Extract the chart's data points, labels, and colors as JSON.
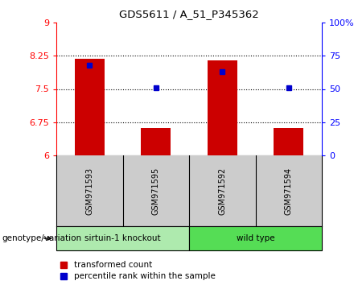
{
  "title": "GDS5611 / A_51_P345362",
  "samples": [
    "GSM971593",
    "GSM971595",
    "GSM971592",
    "GSM971594"
  ],
  "red_values": [
    8.18,
    6.62,
    8.14,
    6.62
  ],
  "blue_values_pct": [
    68,
    51,
    63,
    51
  ],
  "ylim_left": [
    6,
    9
  ],
  "ylim_right": [
    0,
    100
  ],
  "yticks_left": [
    6,
    6.75,
    7.5,
    8.25,
    9
  ],
  "yticks_right": [
    0,
    25,
    50,
    75,
    100
  ],
  "ytick_labels_left": [
    "6",
    "6.75",
    "7.5",
    "8.25",
    "9"
  ],
  "ytick_labels_right": [
    "0",
    "25",
    "50",
    "75",
    "100%"
  ],
  "hlines": [
    6.75,
    7.5,
    8.25
  ],
  "groups": [
    {
      "label": "sirtuin-1 knockout",
      "indices": [
        0,
        1
      ],
      "color": "#aeeaae"
    },
    {
      "label": "wild type",
      "indices": [
        2,
        3
      ],
      "color": "#55dd55"
    }
  ],
  "group_row_label": "genotype/variation",
  "bar_color": "#cc0000",
  "dot_color": "#0000cc",
  "bar_bottom": 6,
  "legend_red": "transformed count",
  "legend_blue": "percentile rank within the sample",
  "sample_box_color": "#cccccc",
  "plot_bg": "#ffffff"
}
